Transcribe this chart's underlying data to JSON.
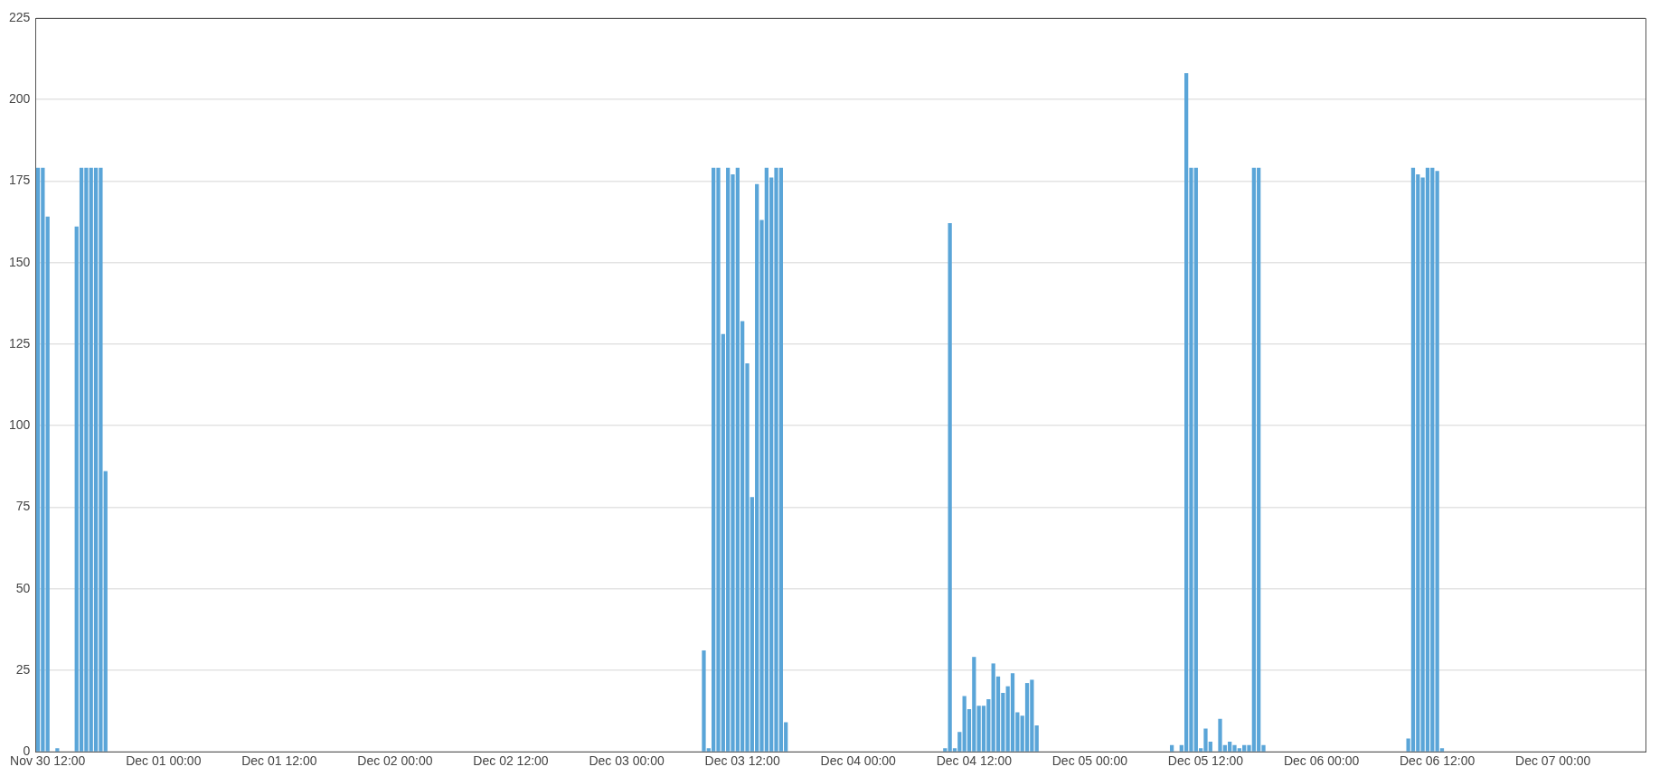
{
  "chart_data": {
    "type": "bar",
    "color": "#5aa5d8",
    "x": [
      "--11-30T11:00",
      "--11-30T11:30",
      "--11-30T12:00",
      "--11-30T13:00",
      "--11-30T15:00",
      "--11-30T15:30",
      "--11-30T16:00",
      "--11-30T16:30",
      "--11-30T17:00",
      "--11-30T17:30",
      "--11-30T18:00",
      "--12-03T08:00",
      "--12-03T08:30",
      "--12-03T09:00",
      "--12-03T09:30",
      "--12-03T10:00",
      "--12-03T10:30",
      "--12-03T11:00",
      "--12-03T11:30",
      "--12-03T12:00",
      "--12-03T12:30",
      "--12-03T13:00",
      "--12-03T13:30",
      "--12-03T14:00",
      "--12-03T14:30",
      "--12-03T15:00",
      "--12-03T15:30",
      "--12-03T16:00",
      "--12-03T16:30",
      "--12-04T09:00",
      "--12-04T09:30",
      "--12-04T10:00",
      "--12-04T10:30",
      "--12-04T11:00",
      "--12-04T11:30",
      "--12-04T12:00",
      "--12-04T12:30",
      "--12-04T13:00",
      "--12-04T13:30",
      "--12-04T14:00",
      "--12-04T14:30",
      "--12-04T15:00",
      "--12-04T15:30",
      "--12-04T16:00",
      "--12-04T16:30",
      "--12-04T17:00",
      "--12-04T17:30",
      "--12-04T18:00",
      "--12-04T18:30",
      "--12-05T08:30",
      "--12-05T09:30",
      "--12-05T10:00",
      "--12-05T10:30",
      "--12-05T11:00",
      "--12-05T11:30",
      "--12-05T12:00",
      "--12-05T12:30",
      "--12-05T13:30",
      "--12-05T14:00",
      "--12-05T14:30",
      "--12-05T15:00",
      "--12-05T15:30",
      "--12-05T16:00",
      "--12-05T16:30",
      "--12-05T17:00",
      "--12-05T17:30",
      "--12-05T18:00",
      "--12-06T09:00",
      "--12-06T09:30",
      "--12-06T10:00",
      "--12-06T10:30",
      "--12-06T11:00",
      "--12-06T11:30",
      "--12-06T12:00",
      "--12-06T12:30"
    ],
    "values": [
      179,
      179,
      164,
      1,
      161,
      179,
      179,
      179,
      179,
      179,
      86,
      31,
      1,
      179,
      179,
      128,
      179,
      177,
      179,
      132,
      119,
      78,
      174,
      163,
      179,
      176,
      179,
      179,
      9,
      1,
      162,
      1,
      6,
      17,
      13,
      29,
      14,
      14,
      16,
      27,
      23,
      18,
      20,
      24,
      12,
      11,
      21,
      22,
      8,
      2,
      2,
      208,
      179,
      179,
      1,
      7,
      3,
      10,
      2,
      3,
      2,
      1,
      2,
      2,
      179,
      179,
      2,
      4,
      179,
      177,
      176,
      179,
      179,
      178,
      1
    ],
    "xlim": [
      "--11-30T10:45",
      "--12-07T09:35"
    ],
    "xticks": [
      {
        "value": "--11-30T12:00",
        "label": "Nov 30 12:00"
      },
      {
        "value": "--12-01T00:00",
        "label": "Dec 01 00:00"
      },
      {
        "value": "--12-01T12:00",
        "label": "Dec 01 12:00"
      },
      {
        "value": "--12-02T00:00",
        "label": "Dec 02 00:00"
      },
      {
        "value": "--12-02T12:00",
        "label": "Dec 02 12:00"
      },
      {
        "value": "--12-03T00:00",
        "label": "Dec 03 00:00"
      },
      {
        "value": "--12-03T12:00",
        "label": "Dec 03 12:00"
      },
      {
        "value": "--12-04T00:00",
        "label": "Dec 04 00:00"
      },
      {
        "value": "--12-04T12:00",
        "label": "Dec 04 12:00"
      },
      {
        "value": "--12-05T00:00",
        "label": "Dec 05 00:00"
      },
      {
        "value": "--12-05T12:00",
        "label": "Dec 05 12:00"
      },
      {
        "value": "--12-06T00:00",
        "label": "Dec 06 00:00"
      },
      {
        "value": "--12-06T12:00",
        "label": "Dec 06 12:00"
      },
      {
        "value": "--12-07T00:00",
        "label": "Dec 07 00:00"
      }
    ],
    "ylim": [
      0,
      225
    ],
    "yticks": [
      0,
      25,
      50,
      75,
      100,
      125,
      150,
      175,
      200,
      225
    ],
    "grid": "y",
    "legend": false
  }
}
